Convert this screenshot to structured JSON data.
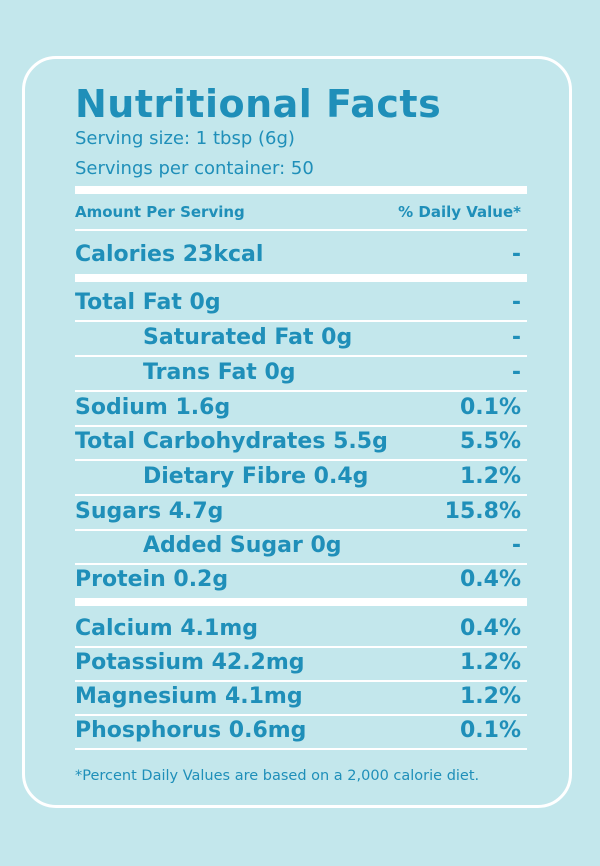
{
  "title": "Nutritional Facts",
  "serving_size": "Serving size: 1 tbsp (6g)",
  "servings_per_container": "Servings per container: 50",
  "header": {
    "amount": "Amount Per Serving",
    "daily_value": "% Daily Value*"
  },
  "calories": {
    "label": "Calories 23kcal",
    "value": "-"
  },
  "nutrients": [
    {
      "label": "Total Fat 0g",
      "value": "-"
    },
    {
      "label": "Saturated Fat 0g",
      "value": "-"
    },
    {
      "label": "Trans Fat 0g",
      "value": "-"
    },
    {
      "label": "Sodium 1.6g",
      "value": "0.1%"
    },
    {
      "label": "Total Carbohydrates 5.5g",
      "value": "5.5%"
    },
    {
      "label": "Dietary Fibre 0.4g",
      "value": "1.2%"
    },
    {
      "label": "Sugars 4.7g",
      "value": "15.8%"
    },
    {
      "label": "Added Sugar 0g",
      "value": "-"
    },
    {
      "label": "Protein 0.2g",
      "value": "0.4%"
    }
  ],
  "minerals": [
    {
      "label": "Calcium 4.1mg",
      "value": "0.4%"
    },
    {
      "label": "Potassium 42.2mg",
      "value": "1.2%"
    },
    {
      "label": "Magnesium 4.1mg",
      "value": "1.2%"
    },
    {
      "label": "Phosphorus 0.6mg",
      "value": "0.1%"
    }
  ],
  "footnote": "*Percent Daily Values are based on a 2,000 calorie diet.",
  "colors": {
    "background": "#c3e7ec",
    "text": "#1f8fb9",
    "lines": "#ffffff"
  }
}
